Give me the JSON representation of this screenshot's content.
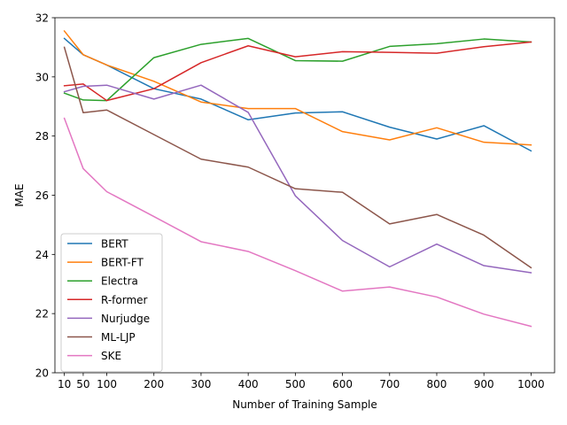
{
  "chart_data": {
    "type": "line",
    "xlabel": "Number of Training Sample",
    "ylabel": "MAE",
    "xlim": [
      -10,
      1050
    ],
    "ylim": [
      20,
      32
    ],
    "x": [
      10,
      50,
      100,
      200,
      300,
      400,
      500,
      600,
      700,
      800,
      900,
      1000
    ],
    "xticks": [
      10,
      50,
      100,
      200,
      300,
      400,
      500,
      600,
      700,
      800,
      900,
      1000
    ],
    "yticks": [
      20,
      22,
      24,
      26,
      28,
      30,
      32
    ],
    "grid": false,
    "legend_position": "lower-left",
    "series": [
      {
        "name": "BERT",
        "color": "#1f77b4",
        "values": [
          31.3,
          30.75,
          30.4,
          29.6,
          29.25,
          28.55,
          28.78,
          28.82,
          28.3,
          27.9,
          28.35,
          27.5
        ]
      },
      {
        "name": "BERT-FT",
        "color": "#ff7f0e",
        "values": [
          31.55,
          30.75,
          30.4,
          29.85,
          29.15,
          28.93,
          28.93,
          28.15,
          27.87,
          28.28,
          27.79,
          27.7
        ]
      },
      {
        "name": "Electra",
        "color": "#2ca02c",
        "values": [
          29.45,
          29.22,
          29.2,
          30.65,
          31.1,
          31.3,
          30.55,
          30.53,
          31.03,
          31.12,
          31.28,
          31.18
        ]
      },
      {
        "name": "R-former",
        "color": "#d62728",
        "values": [
          29.7,
          29.76,
          29.2,
          29.6,
          30.48,
          31.05,
          30.68,
          30.85,
          30.83,
          30.8,
          31.02,
          31.18
        ]
      },
      {
        "name": "Nurjudge",
        "color": "#9467bd",
        "values": [
          29.5,
          29.68,
          29.72,
          29.25,
          29.72,
          28.8,
          25.98,
          24.47,
          23.58,
          24.35,
          23.62,
          23.38
        ]
      },
      {
        "name": "ML-LJP",
        "color": "#8c564b",
        "values": [
          31.0,
          28.79,
          28.88,
          28.05,
          27.22,
          26.95,
          26.22,
          26.1,
          25.03,
          25.35,
          24.65,
          23.55
        ]
      },
      {
        "name": "SKE",
        "color": "#e377c2",
        "values": [
          28.6,
          26.9,
          26.12,
          25.28,
          24.43,
          24.1,
          23.45,
          22.76,
          22.9,
          22.56,
          21.98,
          21.57
        ]
      }
    ]
  }
}
